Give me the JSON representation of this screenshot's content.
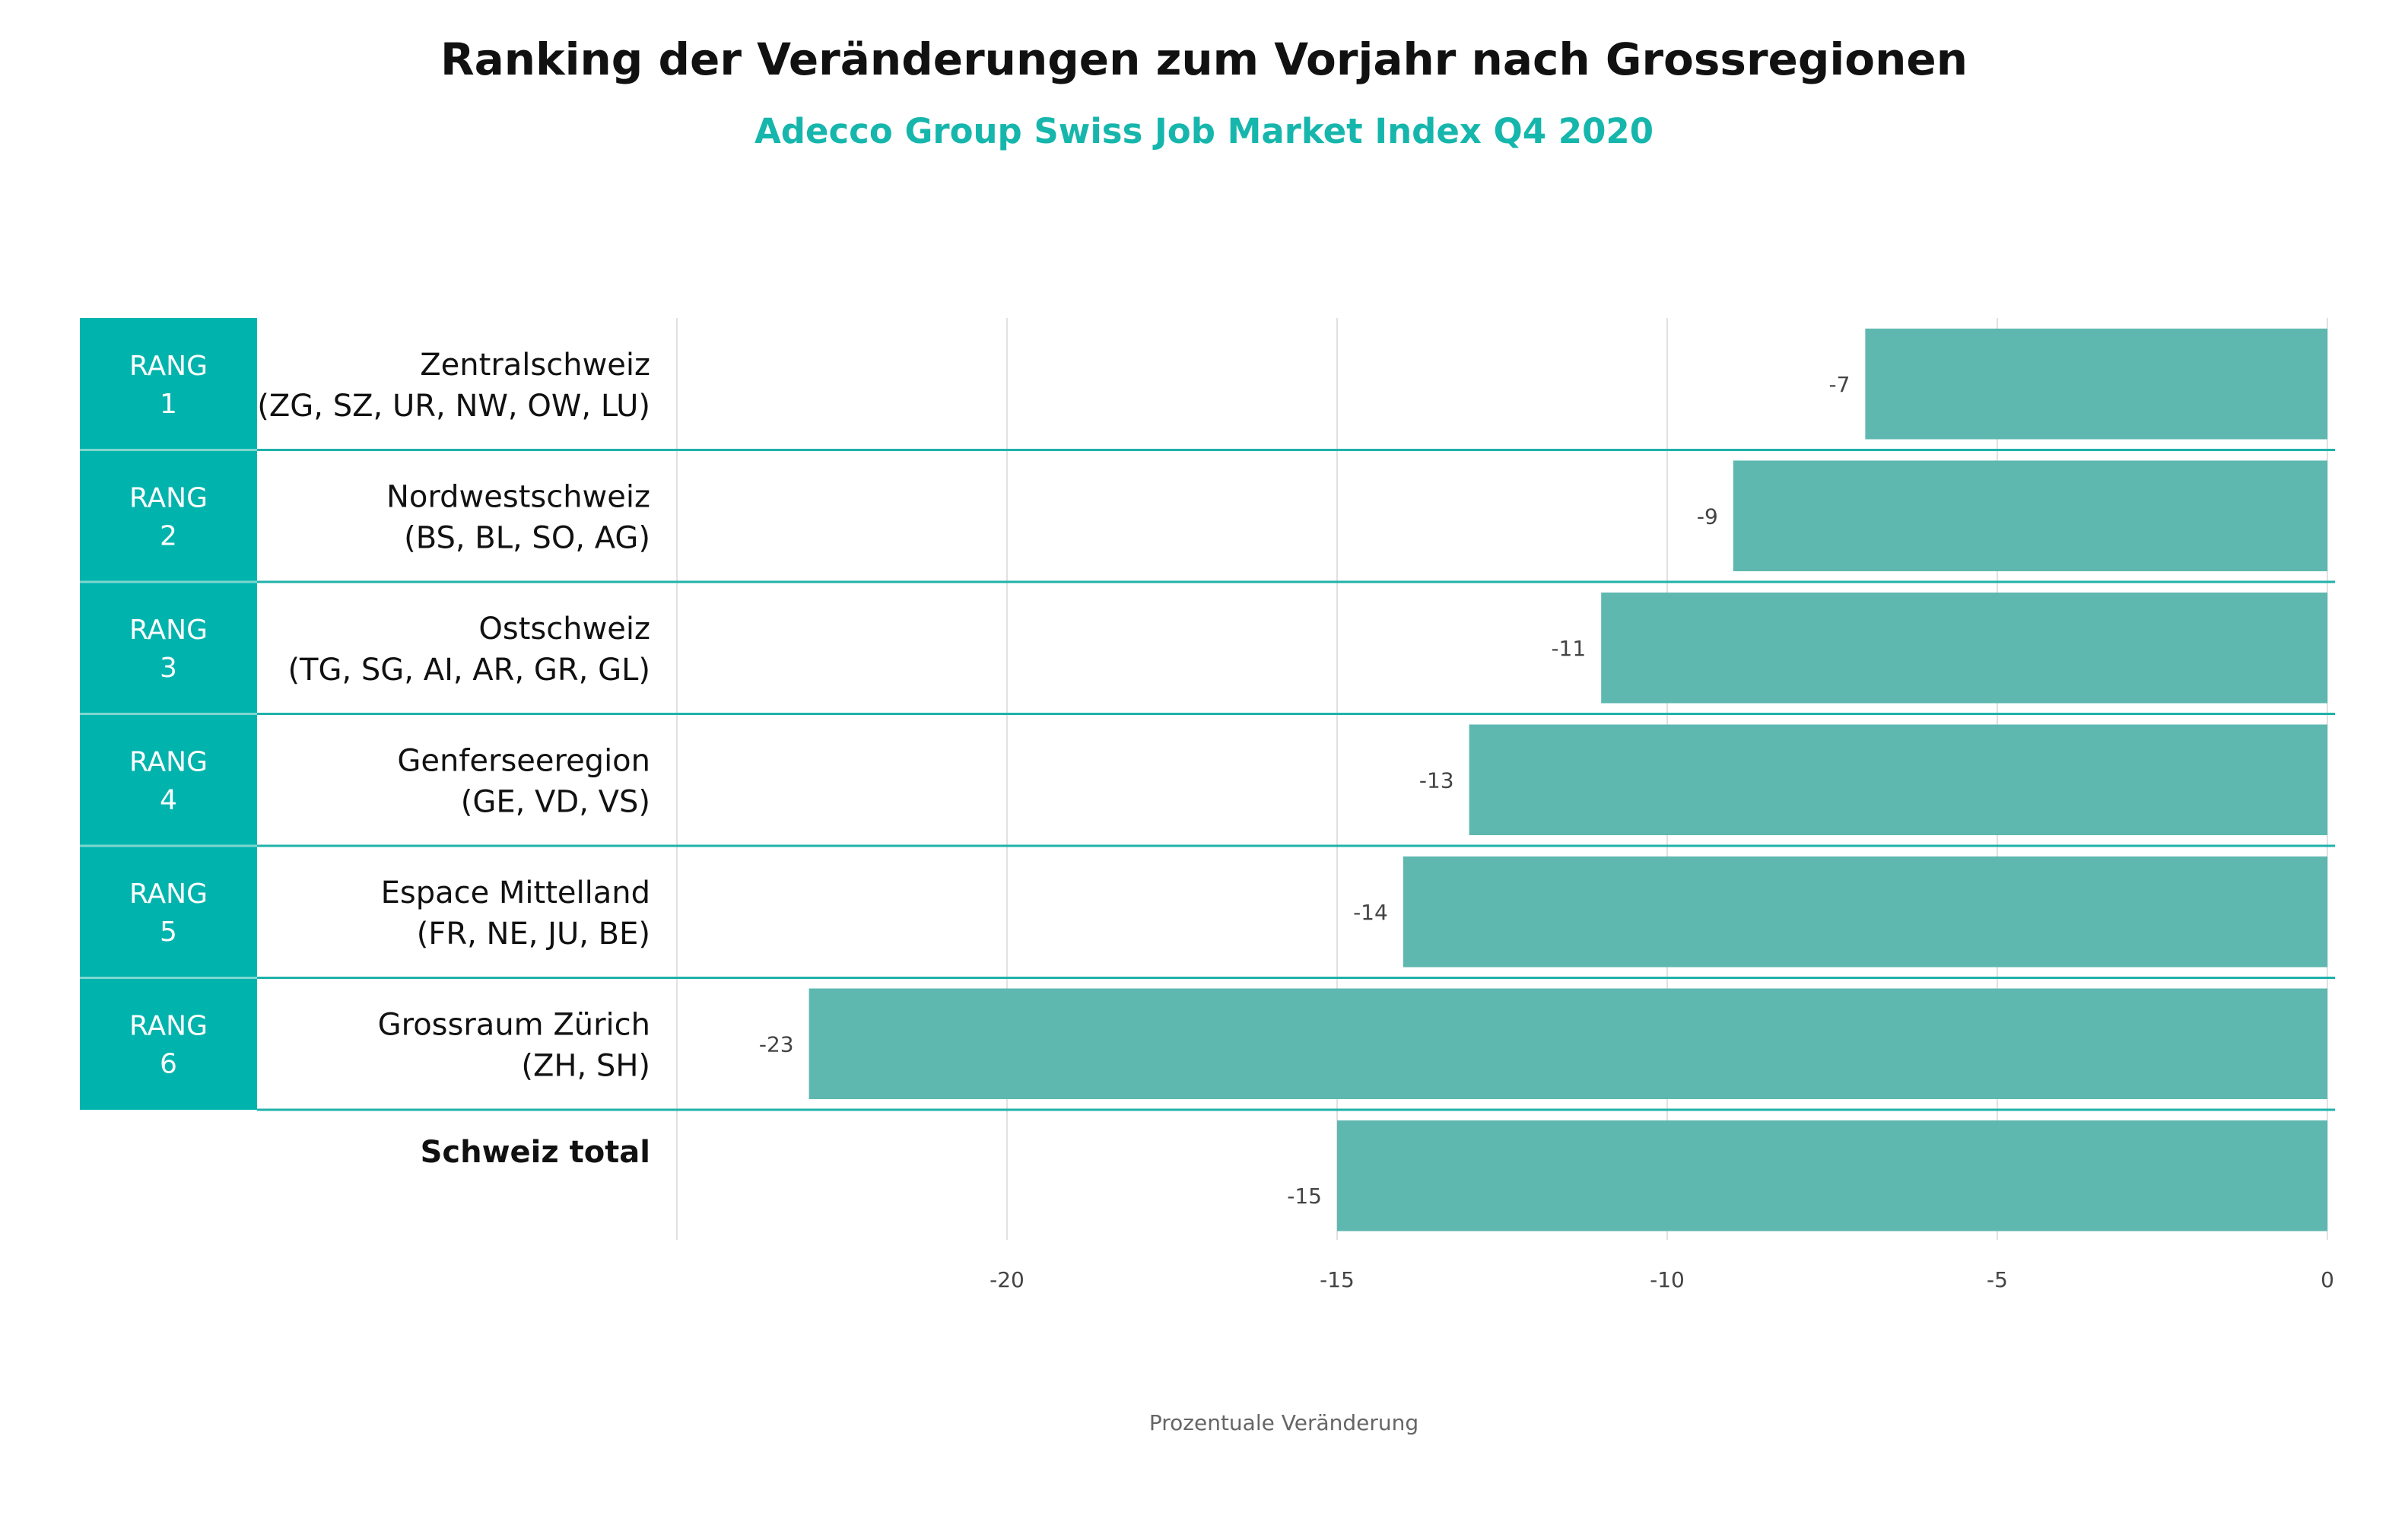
{
  "title": "Ranking der Veränderungen zum Vorjahr nach Grossregionen",
  "subtitle": "Adecco Group Swiss Job Market Index  Q4 2020",
  "colors": {
    "accent": "#00b5ad",
    "bar": "#5eb8b0",
    "subtitle": "#16b6ac",
    "rank_box": "#00b4ad",
    "gridline": "#e1e1e1",
    "separator": "#1fb2aa"
  },
  "chart_data": {
    "type": "bar",
    "orientation": "horizontal",
    "categories": [
      {
        "rank_word": "RANG",
        "rank_number": "1",
        "name": "Zentralschweiz",
        "codes": "(ZG, SZ, UR, NW, OW, LU)"
      },
      {
        "rank_word": "RANG",
        "rank_number": "2",
        "name": "Nordwestschweiz",
        "codes": "(BS, BL, SO, AG)"
      },
      {
        "rank_word": "RANG",
        "rank_number": "3",
        "name": "Ostschweiz",
        "codes": "(TG, SG, AI, AR, GR, GL)"
      },
      {
        "rank_word": "RANG",
        "rank_number": "4",
        "name": "Genferseeregion",
        "codes": "(GE, VD, VS)"
      },
      {
        "rank_word": "RANG",
        "rank_number": "5",
        "name": "Espace Mittelland",
        "codes": "(FR, NE, JU, BE)"
      },
      {
        "rank_word": "RANG",
        "rank_number": "6",
        "name": "Grossraum Zürich",
        "codes": "(ZH, SH)"
      },
      {
        "rank_word": "",
        "rank_number": "",
        "name": "Schweiz total",
        "codes": ""
      }
    ],
    "values": [
      -7,
      -9,
      -11,
      -13,
      -14,
      -23,
      -15
    ],
    "value_labels": [
      "-7",
      "-9",
      "-11",
      "-13",
      "-14",
      "-23",
      "-15"
    ],
    "xlim": [
      -25,
      0
    ],
    "xticks": [
      -20,
      -15,
      -10,
      -5,
      0
    ],
    "xtick_labels": [
      "-20",
      "-15",
      "-10",
      "-5",
      "0"
    ],
    "xlabel": "Prozentuale Veränderung",
    "ylabel": "",
    "grid": true
  }
}
